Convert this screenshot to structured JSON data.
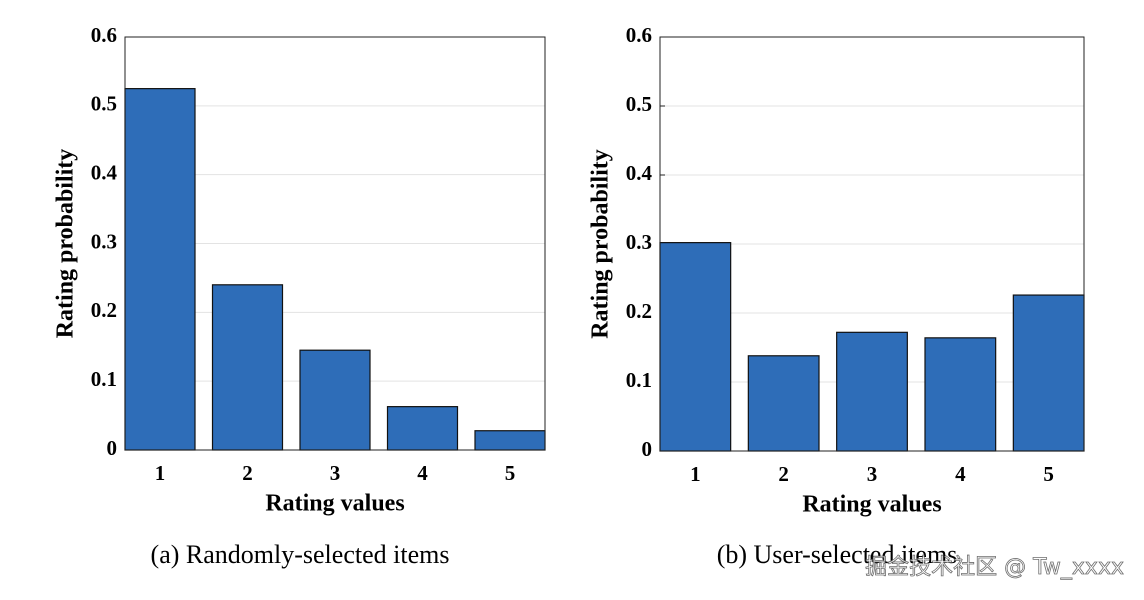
{
  "chart_data": [
    {
      "type": "bar",
      "caption": "(a)  Randomly-selected items",
      "xlabel": "Rating values",
      "ylabel": "Rating probability",
      "x": [
        1,
        2,
        3,
        4,
        5
      ],
      "values": [
        0.525,
        0.24,
        0.145,
        0.063,
        0.028
      ],
      "color": "#2e6db8",
      "xlim": [
        0.6,
        5.4
      ],
      "ylim": [
        0,
        0.6
      ],
      "yticks": [
        0,
        0.1,
        0.2,
        0.3,
        0.4,
        0.5,
        0.6
      ],
      "grid": true
    },
    {
      "type": "bar",
      "caption": "(b)  User-selected items",
      "xlabel": "Rating values",
      "ylabel": "Rating probability",
      "x": [
        1,
        2,
        3,
        4,
        5
      ],
      "values": [
        0.302,
        0.138,
        0.172,
        0.164,
        0.226
      ],
      "color": "#2e6db8",
      "xlim": [
        0.6,
        5.4
      ],
      "ylim": [
        0,
        0.6
      ],
      "yticks": [
        0,
        0.1,
        0.2,
        0.3,
        0.4,
        0.5,
        0.6
      ],
      "grid": true
    }
  ],
  "watermark": "掘金技术社区 @ Tw_xxxx"
}
